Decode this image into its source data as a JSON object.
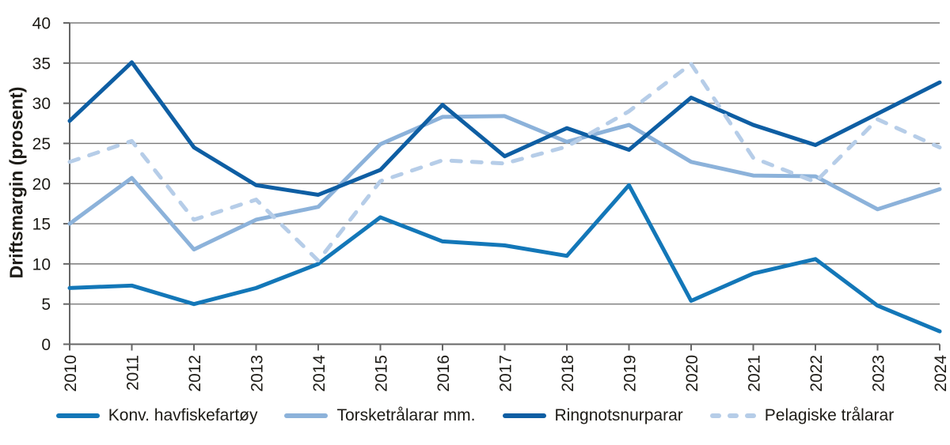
{
  "chart_data": {
    "type": "line",
    "title": "",
    "xlabel": "",
    "ylabel": "Driftsmargin (prosent)",
    "ylim": [
      0,
      40
    ],
    "yticks": [
      0,
      5,
      10,
      15,
      20,
      25,
      30,
      35,
      40
    ],
    "grid": "horizontal",
    "legend_position": "bottom",
    "categories": [
      "2010",
      "2011",
      "2012",
      "2013",
      "2014",
      "2015",
      "2016",
      "2017",
      "2018",
      "2019",
      "2020",
      "2021",
      "2022",
      "2023",
      "2024"
    ],
    "series": [
      {
        "name": "Konv. havfiskefartøy",
        "color": "#1377b8",
        "line_style": "solid",
        "values": [
          7.0,
          7.3,
          5.0,
          7.0,
          10.0,
          15.8,
          12.8,
          12.3,
          11.0,
          19.8,
          5.4,
          8.8,
          10.6,
          4.8,
          1.6
        ]
      },
      {
        "name": "Torsketrålarar mm.",
        "color": "#8cb2da",
        "line_style": "solid",
        "values": [
          15.0,
          20.7,
          11.8,
          15.5,
          17.1,
          24.9,
          28.3,
          28.4,
          25.2,
          27.3,
          22.7,
          21.0,
          20.9,
          16.8,
          19.3
        ]
      },
      {
        "name": "Ringnotsnurparar",
        "color": "#0e5ea3",
        "line_style": "solid",
        "values": [
          27.8,
          35.1,
          24.5,
          19.8,
          18.6,
          21.7,
          29.8,
          23.4,
          26.9,
          24.2,
          30.7,
          27.3,
          24.8,
          28.7,
          32.6
        ]
      },
      {
        "name": "Pelagiske trålarar",
        "color": "#b6cde8",
        "line_style": "dashed",
        "values": [
          22.7,
          25.3,
          15.5,
          18.0,
          10.4,
          20.3,
          22.9,
          22.5,
          24.6,
          29.0,
          34.9,
          23.2,
          20.2,
          28.0,
          24.5
        ]
      }
    ],
    "colors": {
      "grid": "#7a7a7a",
      "axis": "#666666",
      "text": "#1d1b16"
    }
  }
}
